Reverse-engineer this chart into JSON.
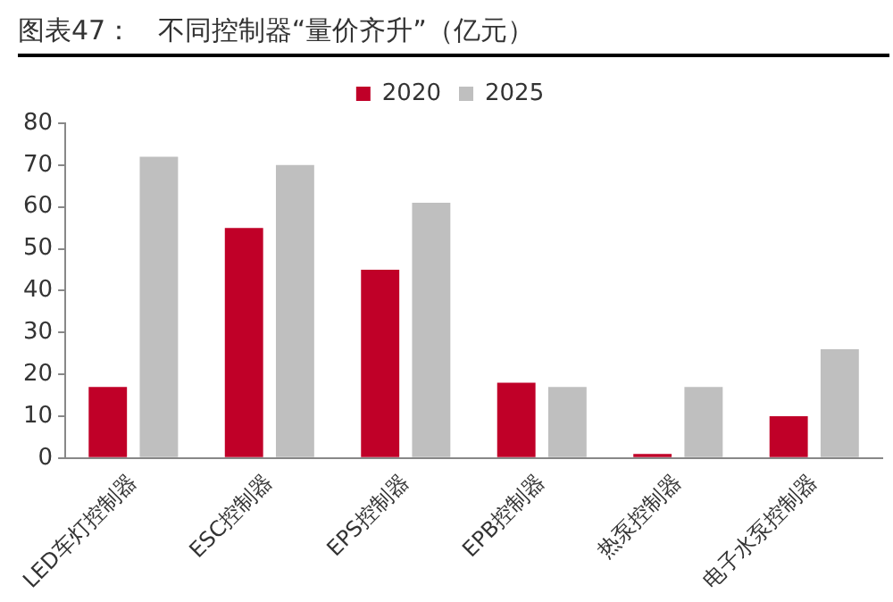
{
  "chart_data": {
    "type": "bar",
    "title": "图表47：   不同控制器“量价齐升”（亿元）",
    "categories": [
      "LED车灯控制器",
      "ESC控制器",
      "EPS控制器",
      "EPB控制器",
      "热泵控制器",
      "电子水泵控制器"
    ],
    "series": [
      {
        "name": "2020",
        "color": "#c00028",
        "values": [
          17,
          55,
          45,
          18,
          1,
          10
        ]
      },
      {
        "name": "2025",
        "color": "#bfbfbf",
        "values": [
          72,
          70,
          61,
          17,
          17,
          26
        ]
      }
    ],
    "ylim": [
      0,
      80
    ],
    "yticks": [
      0,
      10,
      20,
      30,
      40,
      50,
      60,
      70,
      80
    ],
    "grid": false,
    "legend": "top"
  }
}
